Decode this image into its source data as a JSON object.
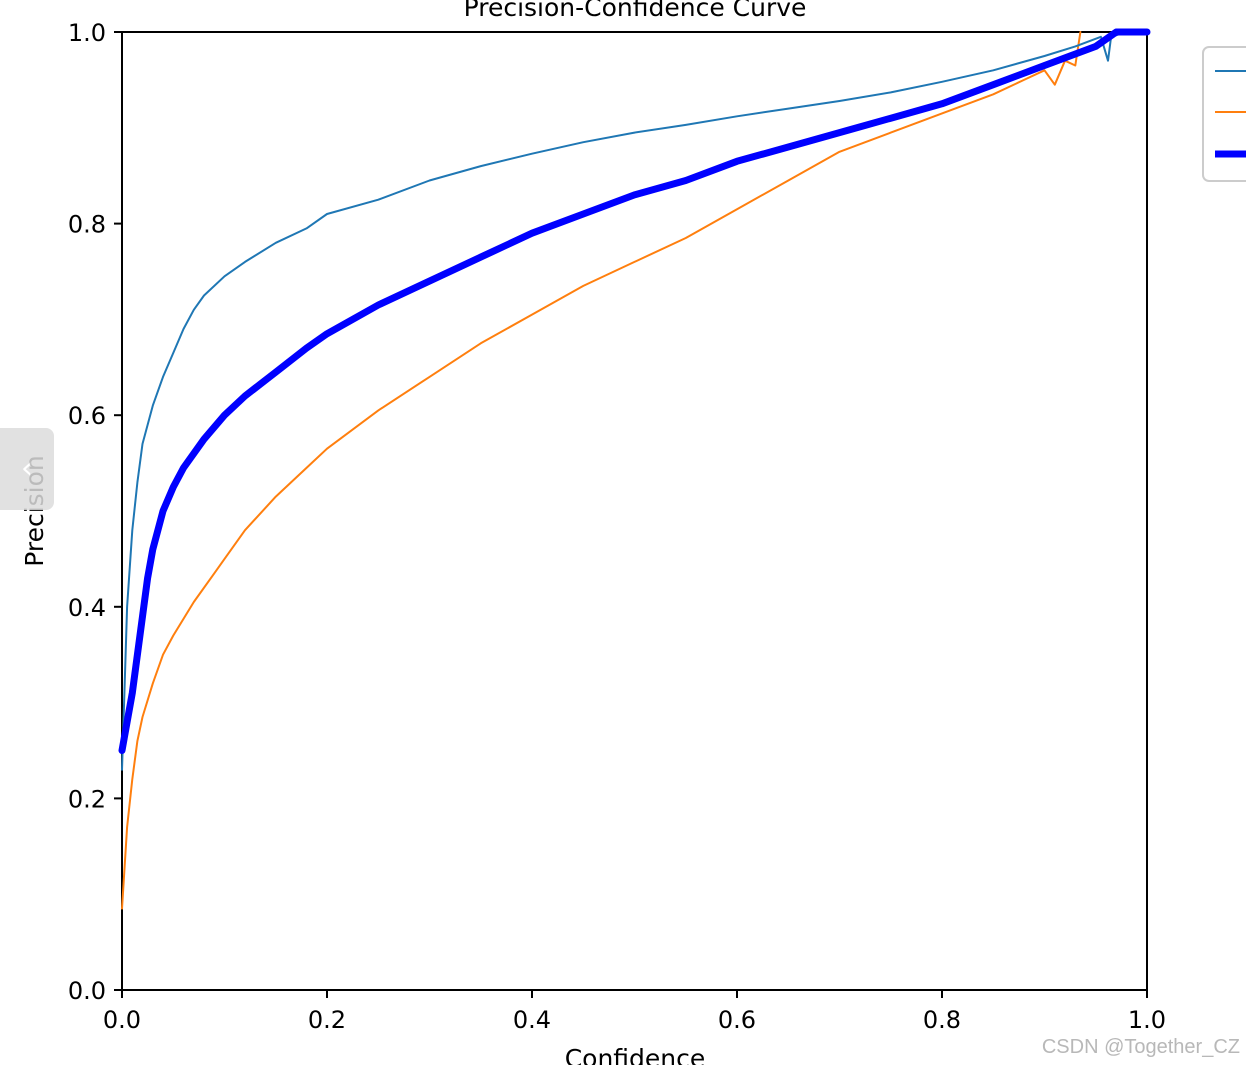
{
  "chart_data": {
    "type": "line",
    "title": "Precision-Confidence Curve",
    "xlabel": "Confidence",
    "ylabel": "Precision",
    "xlim": [
      0,
      1
    ],
    "ylim": [
      0,
      1
    ],
    "xticks": [
      "0.0",
      "0.2",
      "0.4",
      "0.6",
      "0.8",
      "1.0"
    ],
    "yticks": [
      "0.0",
      "0.2",
      "0.4",
      "0.6",
      "0.8",
      "1.0"
    ],
    "grid": false,
    "legend_position": "top-right (partially cut off)",
    "series": [
      {
        "color": "#1f77b4",
        "style": "thin",
        "points": [
          [
            0.0,
            0.23
          ],
          [
            0.005,
            0.4
          ],
          [
            0.01,
            0.48
          ],
          [
            0.015,
            0.53
          ],
          [
            0.02,
            0.57
          ],
          [
            0.03,
            0.61
          ],
          [
            0.04,
            0.64
          ],
          [
            0.05,
            0.665
          ],
          [
            0.06,
            0.69
          ],
          [
            0.07,
            0.71
          ],
          [
            0.08,
            0.725
          ],
          [
            0.1,
            0.745
          ],
          [
            0.12,
            0.76
          ],
          [
            0.15,
            0.78
          ],
          [
            0.18,
            0.795
          ],
          [
            0.2,
            0.81
          ],
          [
            0.25,
            0.825
          ],
          [
            0.3,
            0.845
          ],
          [
            0.35,
            0.86
          ],
          [
            0.4,
            0.873
          ],
          [
            0.45,
            0.885
          ],
          [
            0.5,
            0.895
          ],
          [
            0.55,
            0.903
          ],
          [
            0.6,
            0.912
          ],
          [
            0.65,
            0.92
          ],
          [
            0.7,
            0.928
          ],
          [
            0.75,
            0.937
          ],
          [
            0.8,
            0.948
          ],
          [
            0.85,
            0.96
          ],
          [
            0.9,
            0.975
          ],
          [
            0.93,
            0.985
          ],
          [
            0.955,
            0.995
          ],
          [
            0.962,
            0.97
          ],
          [
            0.965,
            0.995
          ],
          [
            0.98,
            1.0
          ],
          [
            1.0,
            1.0
          ]
        ]
      },
      {
        "color": "#ff7f0e",
        "style": "thin",
        "points": [
          [
            0.0,
            0.085
          ],
          [
            0.005,
            0.17
          ],
          [
            0.01,
            0.22
          ],
          [
            0.015,
            0.26
          ],
          [
            0.02,
            0.285
          ],
          [
            0.03,
            0.32
          ],
          [
            0.04,
            0.35
          ],
          [
            0.05,
            0.37
          ],
          [
            0.07,
            0.405
          ],
          [
            0.09,
            0.435
          ],
          [
            0.1,
            0.45
          ],
          [
            0.12,
            0.48
          ],
          [
            0.15,
            0.515
          ],
          [
            0.18,
            0.545
          ],
          [
            0.2,
            0.565
          ],
          [
            0.25,
            0.605
          ],
          [
            0.3,
            0.64
          ],
          [
            0.35,
            0.675
          ],
          [
            0.4,
            0.705
          ],
          [
            0.45,
            0.735
          ],
          [
            0.5,
            0.76
          ],
          [
            0.55,
            0.785
          ],
          [
            0.6,
            0.815
          ],
          [
            0.65,
            0.845
          ],
          [
            0.7,
            0.875
          ],
          [
            0.75,
            0.895
          ],
          [
            0.8,
            0.915
          ],
          [
            0.85,
            0.935
          ],
          [
            0.88,
            0.95
          ],
          [
            0.9,
            0.96
          ],
          [
            0.91,
            0.945
          ],
          [
            0.92,
            0.97
          ],
          [
            0.93,
            0.965
          ],
          [
            0.935,
            1.0
          ]
        ]
      },
      {
        "color": "#0000ff",
        "style": "thick",
        "points": [
          [
            0.0,
            0.25
          ],
          [
            0.01,
            0.31
          ],
          [
            0.02,
            0.39
          ],
          [
            0.025,
            0.43
          ],
          [
            0.03,
            0.46
          ],
          [
            0.04,
            0.5
          ],
          [
            0.05,
            0.525
          ],
          [
            0.06,
            0.545
          ],
          [
            0.08,
            0.575
          ],
          [
            0.1,
            0.6
          ],
          [
            0.12,
            0.62
          ],
          [
            0.15,
            0.645
          ],
          [
            0.18,
            0.67
          ],
          [
            0.2,
            0.685
          ],
          [
            0.25,
            0.715
          ],
          [
            0.3,
            0.74
          ],
          [
            0.35,
            0.765
          ],
          [
            0.4,
            0.79
          ],
          [
            0.45,
            0.81
          ],
          [
            0.5,
            0.83
          ],
          [
            0.55,
            0.845
          ],
          [
            0.6,
            0.865
          ],
          [
            0.65,
            0.88
          ],
          [
            0.7,
            0.895
          ],
          [
            0.75,
            0.91
          ],
          [
            0.8,
            0.925
          ],
          [
            0.85,
            0.945
          ],
          [
            0.9,
            0.965
          ],
          [
            0.95,
            0.985
          ],
          [
            0.97,
            1.0
          ],
          [
            1.0,
            1.0
          ]
        ]
      }
    ]
  },
  "watermark": "CSDN @Together_CZ",
  "side_tab_glyph": "‹"
}
